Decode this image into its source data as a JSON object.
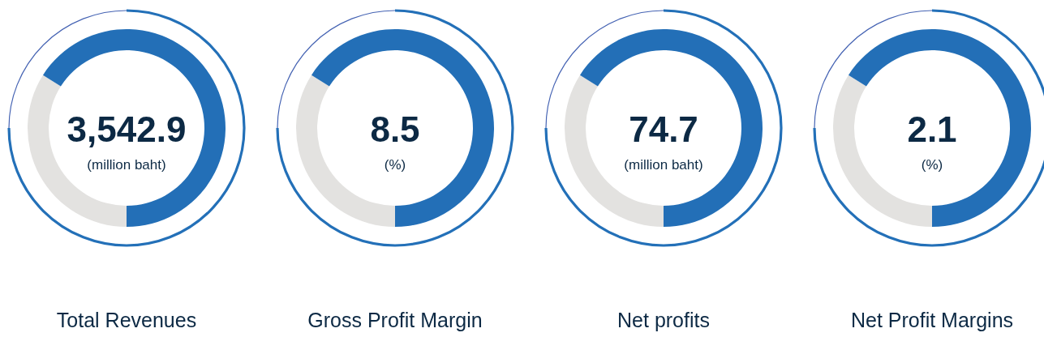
{
  "chart_data": [
    {
      "type": "donut",
      "title": "Total Revenues",
      "annotations": [
        "3,542.9",
        "(million baht)"
      ],
      "categories": [
        null,
        null
      ],
      "values": [
        34,
        66
      ],
      "colors": [
        "#e3e2e0",
        "#236fb7"
      ]
    },
    {
      "type": "donut",
      "title": "Gross Profit Margin",
      "annotations": [
        "8.5",
        "(%)"
      ],
      "categories": [
        null,
        null
      ],
      "values": [
        34,
        66
      ],
      "colors": [
        "#e3e2e0",
        "#236fb7"
      ]
    },
    {
      "type": "donut",
      "title": "Net profits",
      "annotations": [
        "74.7",
        "(million baht)"
      ],
      "categories": [
        null,
        null
      ],
      "values": [
        34,
        66
      ],
      "colors": [
        "#e3e2e0",
        "#236fb7"
      ]
    },
    {
      "type": "donut",
      "title": "Net Profit Margins",
      "annotations": [
        "2.1",
        "(%)"
      ],
      "categories": [
        null,
        null
      ],
      "values": [
        34,
        66
      ],
      "colors": [
        "#e3e2e0",
        "#236fb7"
      ]
    }
  ]
}
